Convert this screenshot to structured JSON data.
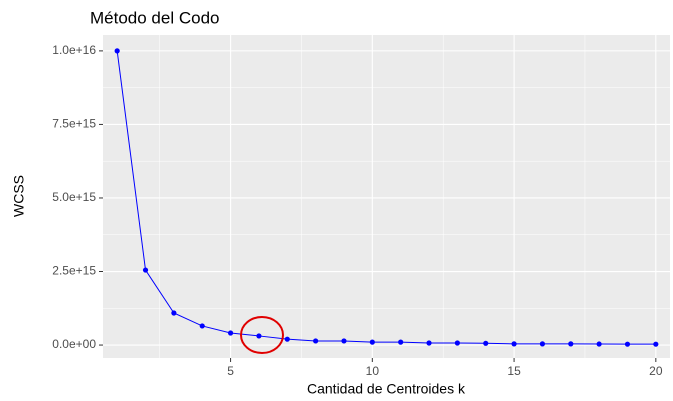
{
  "chart_data": {
    "type": "line",
    "title": "Método del Codo",
    "x_label": "Cantidad de Centroides k",
    "y_label": "WCSS",
    "x": [
      1,
      2,
      3,
      4,
      5,
      6,
      7,
      8,
      9,
      10,
      11,
      12,
      13,
      14,
      15,
      16,
      17,
      18,
      19,
      20
    ],
    "series": [
      {
        "name": "WCSS",
        "color": "#0000ff",
        "values": [
          1e+16,
          2550000000000000.0,
          1090000000000000.0,
          650000000000000.0,
          410000000000000.0,
          310000000000000.0,
          200000000000000.0,
          140000000000000.0,
          140000000000000.0,
          100000000000000.0,
          100000000000000.0,
          70000000000000.0,
          70000000000000.0,
          60000000000000.0,
          40000000000000.0,
          40000000000000.0,
          40000000000000.0,
          35000000000000.0,
          30000000000000.0,
          30000000000000.0
        ]
      }
    ],
    "xlim": [
      0.5,
      20.5
    ],
    "xticks": [
      5,
      10,
      15,
      20
    ],
    "ylim": [
      -440000000000000.0,
      1.054e+16
    ],
    "yticks": [
      {
        "value": 0,
        "label": "0.0e+00"
      },
      {
        "value": 2500000000000000.0,
        "label": "2.5e+15"
      },
      {
        "value": 5000000000000000.0,
        "label": "5.0e+15"
      },
      {
        "value": 7500000000000000.0,
        "label": "7.5e+15"
      },
      {
        "value": 1e+16,
        "label": "1.0e+16"
      }
    ],
    "grid": true
  }
}
